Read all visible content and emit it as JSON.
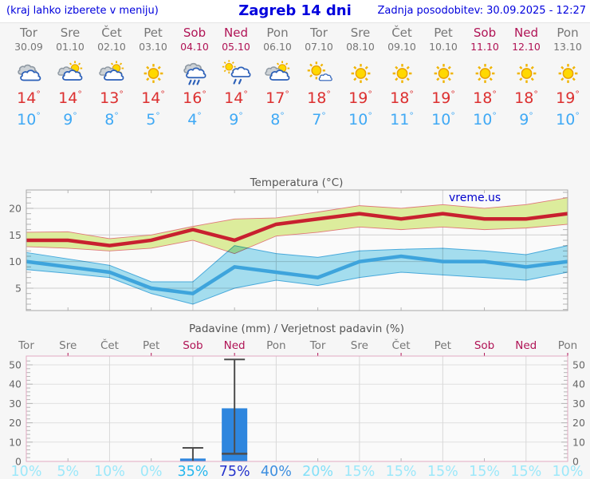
{
  "header": {
    "hint": "(kraj lahko izberete v meniju)",
    "title": "Zagreb 14 dni",
    "updated": "Zadnja posodobitev: 30.09.2025 - 12:27"
  },
  "watermark": "vreme.us",
  "degree_symbol": "°",
  "colors": {
    "header_text": "#0000dd",
    "weekday_label": "#767676",
    "weekend_label": "#b01355",
    "temp_high": "#dc2f2f",
    "temp_low": "#3fa9f5",
    "max_line": "#c8202f",
    "max_band": "#dcec9c",
    "min_line": "#3ea4dc",
    "min_band": "#a7e2f3",
    "bar_blue": "#2e86de",
    "whisker": "#4d4d4d",
    "precip_border": "#e2a9c2"
  },
  "days": [
    {
      "name": "Tor",
      "date": "30.09",
      "weekend": false,
      "icon": "cloudy",
      "tmax": 14,
      "tmin": 10,
      "precip_probability": "10%",
      "prob_color": "#9ce8fa"
    },
    {
      "name": "Sre",
      "date": "01.10",
      "weekend": false,
      "icon": "partly-cloudy",
      "tmax": 14,
      "tmin": 9,
      "precip_probability": "5%",
      "prob_color": "#9ce8fa"
    },
    {
      "name": "Čet",
      "date": "02.10",
      "weekend": false,
      "icon": "partly-cloudy",
      "tmax": 13,
      "tmin": 8,
      "precip_probability": "10%",
      "prob_color": "#9ce8fa"
    },
    {
      "name": "Pet",
      "date": "03.10",
      "weekend": false,
      "icon": "sunny",
      "tmax": 14,
      "tmin": 5,
      "precip_probability": "0%",
      "prob_color": "#9ce8fa"
    },
    {
      "name": "Sob",
      "date": "04.10",
      "weekend": true,
      "icon": "rain",
      "tmax": 16,
      "tmin": 4,
      "precip_probability": "35%",
      "prob_color": "#27b7ee"
    },
    {
      "name": "Ned",
      "date": "05.10",
      "weekend": true,
      "icon": "sun-rain",
      "tmax": 14,
      "tmin": 9,
      "precip_probability": "75%",
      "prob_color": "#2433cc"
    },
    {
      "name": "Pon",
      "date": "06.10",
      "weekend": false,
      "icon": "partly-cloudy",
      "tmax": 17,
      "tmin": 8,
      "precip_probability": "40%",
      "prob_color": "#3d8fe0"
    },
    {
      "name": "Tor",
      "date": "07.10",
      "weekend": false,
      "icon": "mostly-sunny",
      "tmax": 18,
      "tmin": 7,
      "precip_probability": "20%",
      "prob_color": "#83e0f8"
    },
    {
      "name": "Sre",
      "date": "08.10",
      "weekend": false,
      "icon": "sunny",
      "tmax": 19,
      "tmin": 10,
      "precip_probability": "15%",
      "prob_color": "#9ce8fa"
    },
    {
      "name": "Čet",
      "date": "09.10",
      "weekend": false,
      "icon": "sunny",
      "tmax": 18,
      "tmin": 11,
      "precip_probability": "15%",
      "prob_color": "#9ce8fa"
    },
    {
      "name": "Pet",
      "date": "10.10",
      "weekend": false,
      "icon": "sunny",
      "tmax": 19,
      "tmin": 10,
      "precip_probability": "15%",
      "prob_color": "#9ce8fa"
    },
    {
      "name": "Sob",
      "date": "11.10",
      "weekend": true,
      "icon": "sunny",
      "tmax": 18,
      "tmin": 10,
      "precip_probability": "15%",
      "prob_color": "#9ce8fa"
    },
    {
      "name": "Ned",
      "date": "12.10",
      "weekend": true,
      "icon": "sunny",
      "tmax": 18,
      "tmin": 9,
      "precip_probability": "15%",
      "prob_color": "#9ce8fa"
    },
    {
      "name": "Pon",
      "date": "13.10",
      "weekend": false,
      "icon": "sunny",
      "tmax": 19,
      "tmin": 10,
      "precip_probability": "10%",
      "prob_color": "#9ce8fa"
    }
  ],
  "chart_data": [
    {
      "type": "line",
      "title": "Temperatura (°C)",
      "categories": [
        "Tor 30.09",
        "Sre 01.10",
        "Čet 02.10",
        "Pet 03.10",
        "Sob 04.10",
        "Ned 05.10",
        "Pon 06.10",
        "Tor 07.10",
        "Sre 08.10",
        "Čet 09.10",
        "Pet 10.10",
        "Sob 11.10",
        "Ned 12.10",
        "Pon 13.10"
      ],
      "ylabel": "°C",
      "ylim": [
        0.8,
        23.4
      ],
      "yticks": [
        5,
        10,
        15,
        20
      ],
      "grid": true,
      "series": [
        {
          "name": "max temperature",
          "color": "#c8202f",
          "band_color": "#dcec9c",
          "values": [
            14,
            14,
            13,
            14,
            16,
            14,
            17,
            18,
            19,
            18,
            19,
            18,
            18,
            19
          ],
          "band_high": [
            15.5,
            15.6,
            14.3,
            15.0,
            16.6,
            18.0,
            18.2,
            19.3,
            20.5,
            20.0,
            20.7,
            20.0,
            20.7,
            22.0
          ],
          "band_low": [
            12.8,
            12.5,
            12.0,
            12.5,
            14.0,
            11.5,
            14.8,
            15.5,
            16.5,
            16.0,
            16.5,
            16.0,
            16.3,
            17.0
          ]
        },
        {
          "name": "min temperature",
          "color": "#3ea4dc",
          "band_color": "#a7e2f3",
          "values": [
            10,
            9,
            8,
            5,
            4,
            9,
            8,
            7,
            10,
            11,
            10,
            10,
            9,
            10
          ],
          "band_high": [
            11.7,
            10.5,
            9.3,
            6.2,
            6.2,
            13.0,
            11.5,
            10.8,
            12.0,
            12.3,
            12.5,
            12.0,
            11.3,
            13.0
          ],
          "band_low": [
            8.5,
            7.8,
            7.0,
            4.0,
            2.0,
            5.0,
            6.5,
            5.5,
            7.0,
            8.0,
            7.5,
            7.0,
            6.5,
            8.0
          ]
        }
      ]
    },
    {
      "type": "bar",
      "title": "Padavine (mm) / Verjetnost padavin (%)",
      "categories": [
        "Tor",
        "Sre",
        "Čet",
        "Pet",
        "Sob",
        "Ned",
        "Pon",
        "Tor",
        "Sre",
        "Čet",
        "Pet",
        "Sob",
        "Ned",
        "Pon"
      ],
      "values": [
        0,
        0,
        0,
        0,
        1.5,
        27.5,
        0,
        0,
        0,
        0,
        0,
        0,
        0,
        0
      ],
      "whiskers": [
        {
          "day_index": 4,
          "low": 0.3,
          "high": 7.0,
          "low_cap": false
        },
        {
          "day_index": 5,
          "low": 4.0,
          "high": 52.8,
          "low_cap": true
        }
      ],
      "probabilities": [
        "10%",
        "5%",
        "10%",
        "0%",
        "35%",
        "75%",
        "40%",
        "20%",
        "15%",
        "15%",
        "15%",
        "15%",
        "15%",
        "10%"
      ],
      "ylim": [
        0,
        54.5
      ],
      "yticks": [
        0,
        10,
        20,
        30,
        40,
        50
      ],
      "bar_color": "#2e86de",
      "grid": true
    }
  ]
}
